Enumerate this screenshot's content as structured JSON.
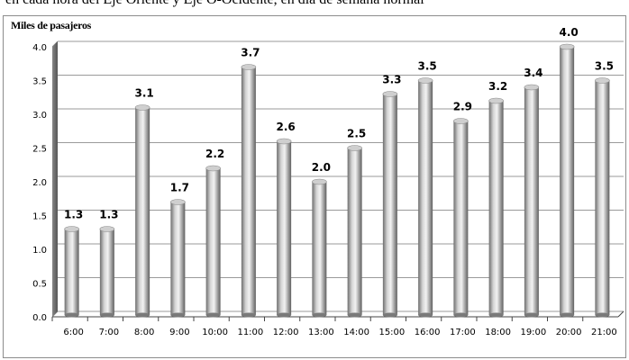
{
  "top_strip_text": "en cada hora del Eje Oriente y Eje O-Ocidente, en día de semana normal",
  "chart_data": {
    "type": "bar",
    "title": "",
    "ylabel": "Miles de pasajeros",
    "xlabel": "",
    "ylim": [
      0,
      4.0
    ],
    "yticks": [
      "0.0",
      "0.5",
      "1.0",
      "1.5",
      "2.0",
      "2.5",
      "3.0",
      "3.5",
      "4.0"
    ],
    "categories": [
      "6:00",
      "7:00",
      "8:00",
      "9:00",
      "10:00",
      "11:00",
      "12:00",
      "13:00",
      "14:00",
      "15:00",
      "16:00",
      "17:00",
      "18:00",
      "19:00",
      "20:00",
      "21:00"
    ],
    "values": [
      1.3,
      1.3,
      3.1,
      1.7,
      2.2,
      3.7,
      2.6,
      2.0,
      2.5,
      3.3,
      3.5,
      2.9,
      3.2,
      3.4,
      4.0,
      3.5
    ],
    "data_labels": [
      "1.3",
      "1.3",
      "3.1",
      "1.7",
      "2.2",
      "3.7",
      "2.6",
      "2.0",
      "2.5",
      "3.3",
      "3.5",
      "2.9",
      "3.2",
      "3.4",
      "4.0",
      "3.5"
    ],
    "grid": true,
    "bar_color": "#a8a8a8",
    "grid_color": "#9a9a9a"
  }
}
